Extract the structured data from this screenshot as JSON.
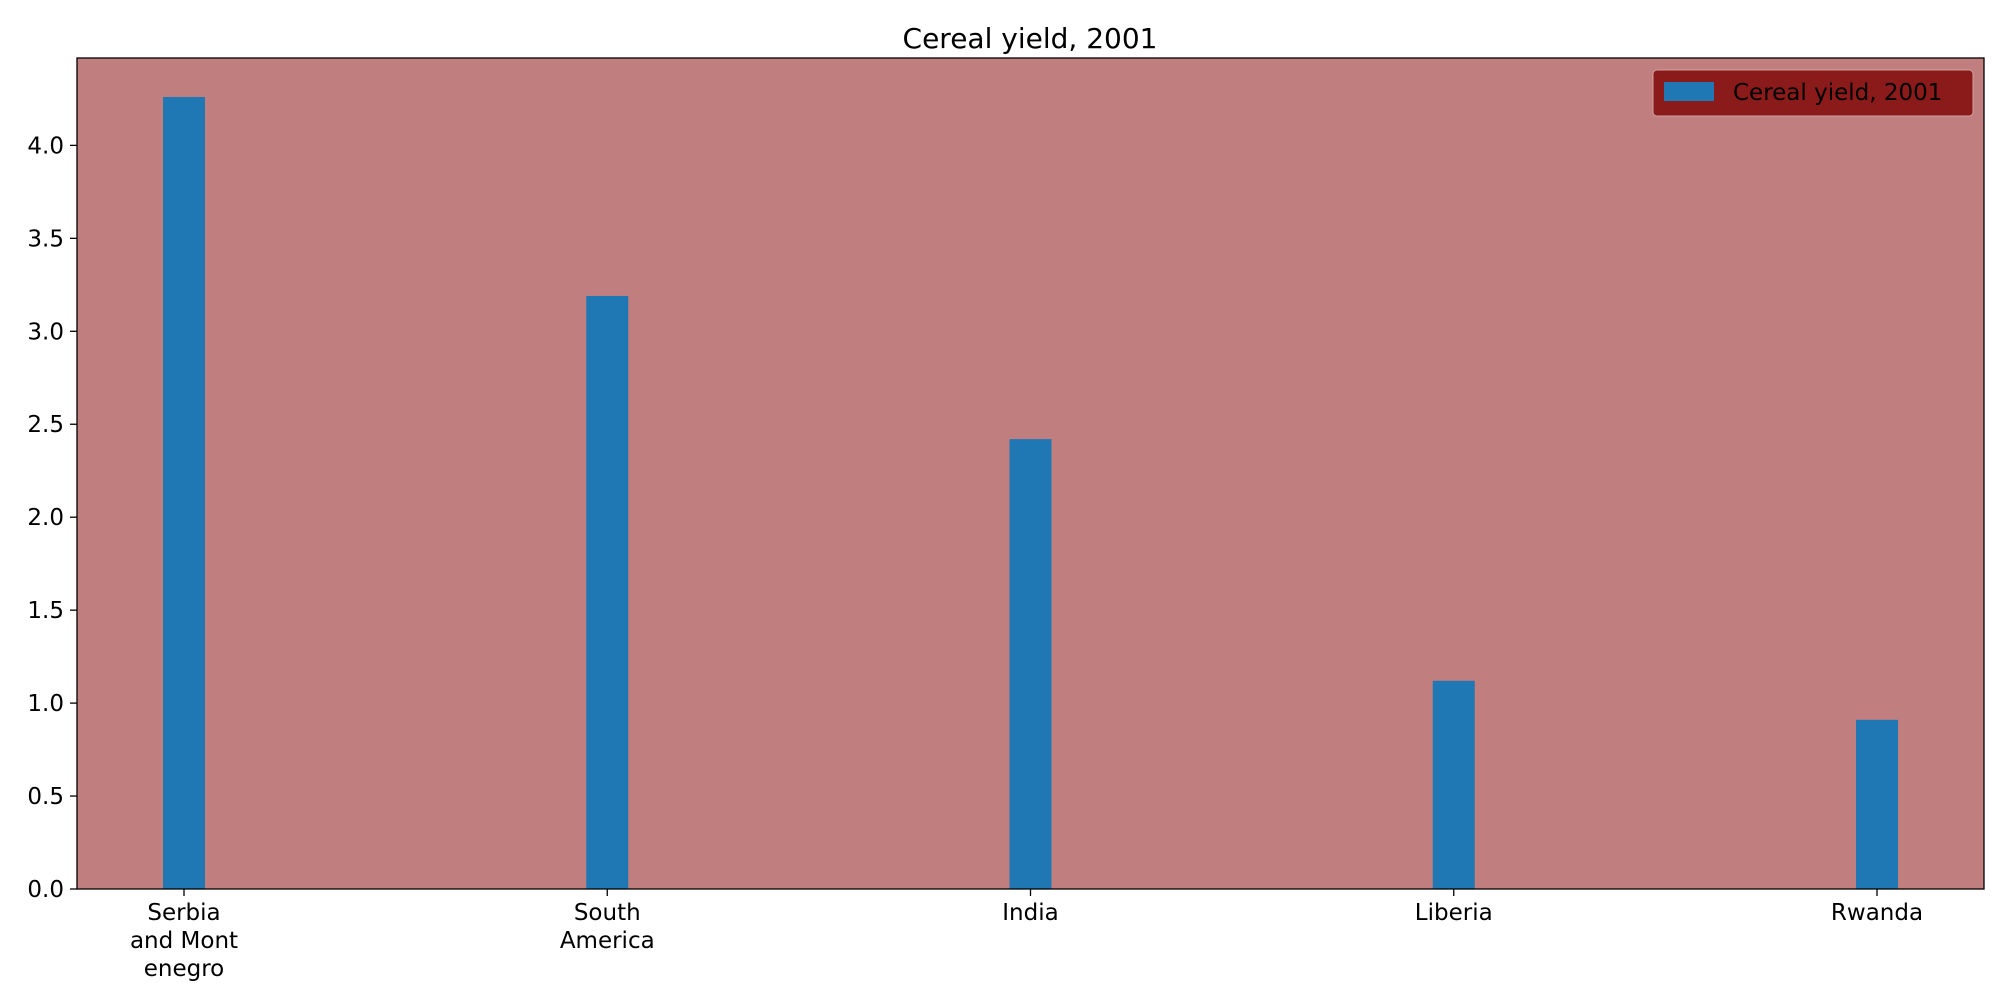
{
  "chart_data": {
    "type": "bar",
    "title": "Cereal yield, 2001",
    "xlabel": "",
    "ylabel": "",
    "categories": [
      [
        "Serbia",
        "and Mont",
        "enegro"
      ],
      [
        "South",
        "America"
      ],
      [
        "India"
      ],
      [
        "Liberia"
      ],
      [
        "Rwanda"
      ]
    ],
    "series": [
      {
        "name": "Cereal yield, 2001",
        "values": [
          4.26,
          3.19,
          2.42,
          1.12,
          0.91
        ],
        "color": "#1f77b4"
      }
    ],
    "ylim": [
      0,
      4.47
    ],
    "yticks": [
      0.0,
      0.5,
      1.0,
      1.5,
      2.0,
      2.5,
      3.0,
      3.5,
      4.0
    ],
    "ytick_labels": [
      "0.0",
      "0.5",
      "1.0",
      "1.5",
      "2.0",
      "2.5",
      "3.0",
      "3.5",
      "4.0"
    ],
    "grid": false,
    "legend_position": "top-right",
    "colors": {
      "plot_background": "#c07f7e",
      "legend_background": "#8b1a1a",
      "bar": "#1f77b4",
      "axis": "#000000"
    }
  }
}
